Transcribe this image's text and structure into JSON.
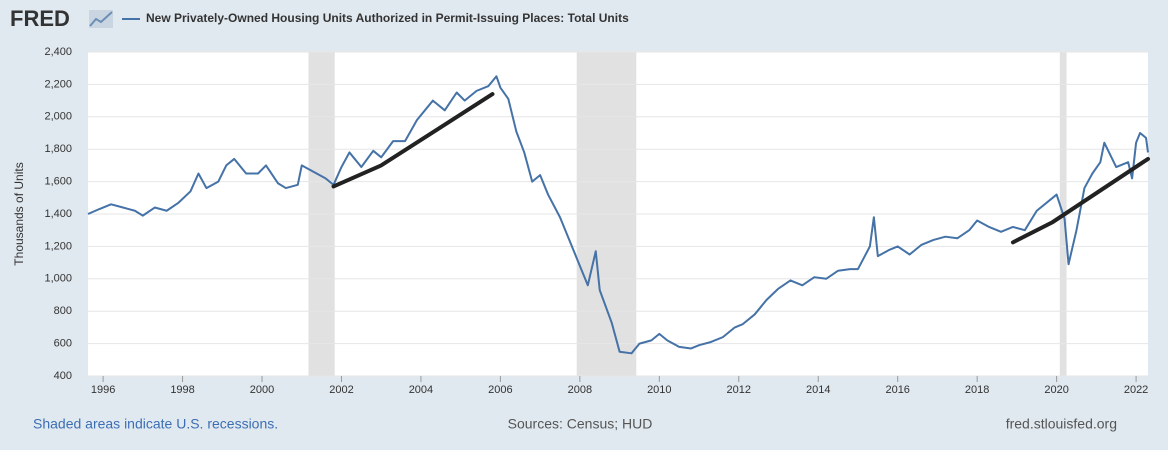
{
  "logo": "FRED",
  "chart_data": {
    "type": "line",
    "title": "New Privately-Owned Housing Units Authorized in Permit-Issuing Places: Total Units",
    "ylabel": "Thousands of Units",
    "x": [
      1995.62,
      1995.9,
      1996.2,
      1996.5,
      1996.8,
      1997.0,
      1997.3,
      1997.6,
      1997.9,
      1998.2,
      1998.4,
      1998.6,
      1998.9,
      1999.1,
      1999.3,
      1999.6,
      1999.9,
      2000.1,
      2000.4,
      2000.6,
      2000.9,
      2001.0,
      2001.3,
      2001.6,
      2001.8,
      2002.0,
      2002.2,
      2002.5,
      2002.8,
      2003.0,
      2003.3,
      2003.6,
      2003.9,
      2004.1,
      2004.3,
      2004.6,
      2004.9,
      2005.1,
      2005.4,
      2005.7,
      2005.9,
      2006.0,
      2006.2,
      2006.4,
      2006.6,
      2006.8,
      2007.0,
      2007.2,
      2007.5,
      2007.8,
      2008.0,
      2008.2,
      2008.4,
      2008.5,
      2008.8,
      2009.0,
      2009.3,
      2009.5,
      2009.8,
      2010.0,
      2010.2,
      2010.5,
      2010.8,
      2011.0,
      2011.3,
      2011.6,
      2011.9,
      2012.1,
      2012.4,
      2012.7,
      2013.0,
      2013.3,
      2013.6,
      2013.9,
      2014.2,
      2014.5,
      2014.8,
      2015.0,
      2015.3,
      2015.4,
      2015.5,
      2015.8,
      2016.0,
      2016.3,
      2016.6,
      2016.9,
      2017.2,
      2017.5,
      2017.8,
      2018.0,
      2018.3,
      2018.6,
      2018.9,
      2019.2,
      2019.5,
      2019.8,
      2020.0,
      2020.2,
      2020.3,
      2020.5,
      2020.7,
      2020.9,
      2021.1,
      2021.2,
      2021.5,
      2021.8,
      2021.9,
      2022.0,
      2022.1,
      2022.25,
      2022.3
    ],
    "series": [
      {
        "name": "New Privately-Owned Housing Units Authorized in Permit-Issuing Places: Total Units",
        "color": "#4572a7",
        "values": [
          1400,
          1430,
          1460,
          1440,
          1420,
          1390,
          1440,
          1420,
          1470,
          1540,
          1650,
          1560,
          1600,
          1700,
          1740,
          1650,
          1650,
          1700,
          1590,
          1560,
          1580,
          1700,
          1660,
          1620,
          1580,
          1690,
          1780,
          1690,
          1790,
          1750,
          1850,
          1850,
          1980,
          2040,
          2100,
          2040,
          2150,
          2100,
          2160,
          2190,
          2250,
          2180,
          2110,
          1910,
          1780,
          1600,
          1640,
          1520,
          1380,
          1200,
          1080,
          960,
          1170,
          930,
          730,
          550,
          540,
          600,
          620,
          660,
          620,
          580,
          570,
          590,
          610,
          640,
          700,
          720,
          780,
          870,
          940,
          990,
          960,
          1010,
          1000,
          1050,
          1060,
          1060,
          1200,
          1380,
          1140,
          1180,
          1200,
          1150,
          1210,
          1240,
          1260,
          1250,
          1300,
          1360,
          1320,
          1290,
          1320,
          1300,
          1420,
          1480,
          1520,
          1370,
          1090,
          1300,
          1560,
          1650,
          1720,
          1840,
          1690,
          1720,
          1620,
          1840,
          1900,
          1870,
          1780
        ]
      }
    ],
    "trend_lines": [
      {
        "color": "#222222",
        "x": [
          2001.8,
          2003.0,
          2005.8
        ],
        "values": [
          1570,
          1700,
          2140
        ]
      },
      {
        "color": "#222222",
        "x": [
          2018.9,
          2019.9,
          2022.3
        ],
        "values": [
          1225,
          1350,
          1740
        ]
      }
    ],
    "recessions": [
      {
        "start": 2001.17,
        "end": 2001.83
      },
      {
        "start": 2007.92,
        "end": 2009.42
      },
      {
        "start": 2020.08,
        "end": 2020.25
      }
    ],
    "recession_color": "#e1e1e1",
    "xlim": [
      1995.62,
      2022.3
    ],
    "xticks": [
      1996,
      1998,
      2000,
      2002,
      2004,
      2006,
      2008,
      2010,
      2012,
      2014,
      2016,
      2018,
      2020,
      2022
    ],
    "ylim": [
      400,
      2400
    ],
    "yticks": [
      {
        "value": 400,
        "label": "400"
      },
      {
        "value": 600,
        "label": "600"
      },
      {
        "value": 800,
        "label": "800"
      },
      {
        "value": 1000,
        "label": "1,000"
      },
      {
        "value": 1200,
        "label": "1,200"
      },
      {
        "value": 1400,
        "label": "1,400"
      },
      {
        "value": 1600,
        "label": "1,600"
      },
      {
        "value": 1800,
        "label": "1,800"
      },
      {
        "value": 2000,
        "label": "2,000"
      },
      {
        "value": 2200,
        "label": "2,200"
      },
      {
        "value": 2400,
        "label": "2,400"
      }
    ],
    "grid": true,
    "note": "Shaded areas indicate U.S. recessions.",
    "source": "Sources: Census; HUD",
    "site": "fred.stlouisfed.org"
  }
}
